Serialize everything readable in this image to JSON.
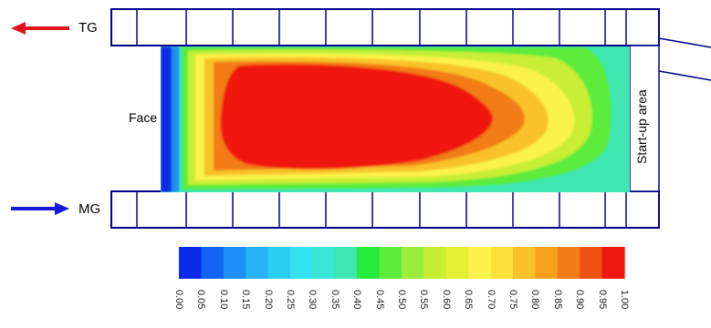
{
  "labels": {
    "tg": "TG",
    "mg": "MG",
    "face": "Face",
    "startup": "Start-up area"
  },
  "colors": {
    "frame": "#00008b",
    "tg_arrow": "#e0141b",
    "mg_arrow": "#1a1ad6"
  },
  "colorbar": {
    "ticks": [
      "0.00",
      "0.05",
      "0.10",
      "0.15",
      "0.20",
      "0.25",
      "0.30",
      "0.35",
      "0.40",
      "0.45",
      "0.50",
      "0.55",
      "0.60",
      "0.65",
      "0.70",
      "0.75",
      "0.80",
      "0.85",
      "0.90",
      "0.95",
      "1.00"
    ],
    "colors": [
      "#0a2be8",
      "#1463f5",
      "#1f90f7",
      "#26b2f5",
      "#2ccdf2",
      "#34e2f0",
      "#3ae6d4",
      "#3ee6b2",
      "#27ea3c",
      "#5cec3a",
      "#9cec3c",
      "#c8ee34",
      "#e6ef34",
      "#fbf34a",
      "#fbe03a",
      "#f9c22a",
      "#f7a01e",
      "#f27c18",
      "#ef5115",
      "#ef1710"
    ]
  }
}
